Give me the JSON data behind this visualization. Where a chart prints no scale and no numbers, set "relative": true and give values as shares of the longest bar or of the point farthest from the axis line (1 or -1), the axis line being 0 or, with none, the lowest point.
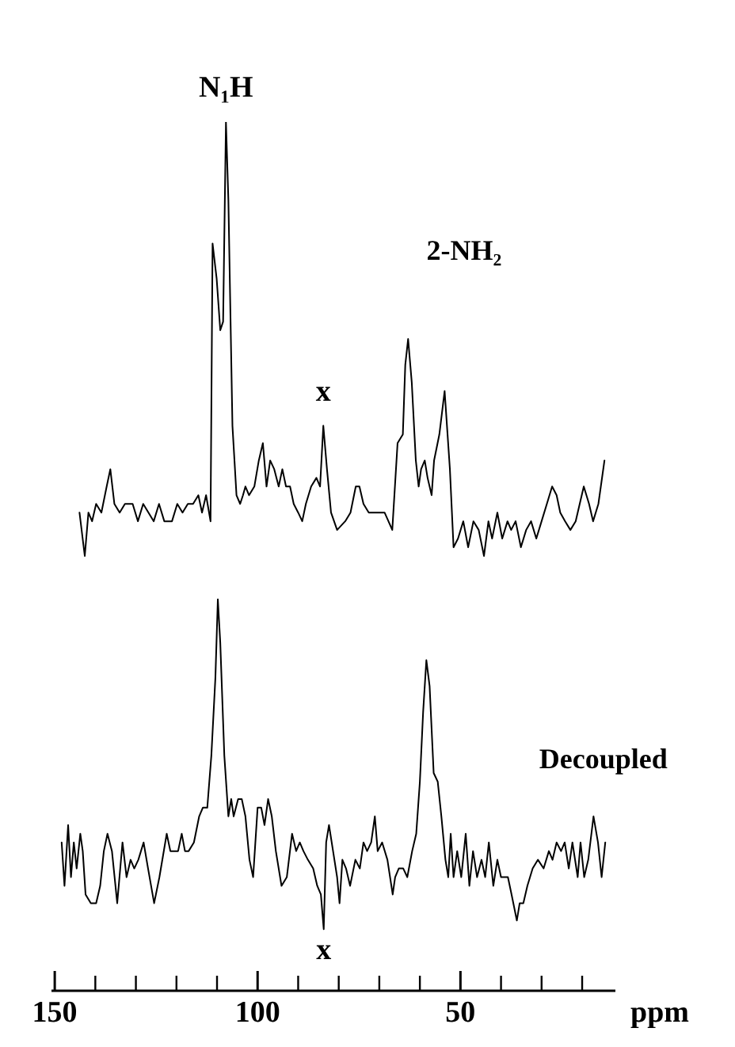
{
  "chart_data": {
    "type": "line",
    "relative": true,
    "xlim": [
      151,
      12
    ],
    "xlabel": "ppm",
    "xticks": [
      150,
      {
        "value": 140,
        "label": null
      },
      {
        "value": 130,
        "label": null
      },
      {
        "value": 120,
        "label": null
      },
      {
        "value": 110,
        "label": null
      },
      100,
      {
        "value": 90,
        "label": null
      },
      {
        "value": 80,
        "label": null
      },
      {
        "value": 70,
        "label": null
      },
      {
        "value": 60,
        "label": null
      },
      50,
      {
        "value": 40,
        "label": null
      },
      {
        "value": 30,
        "label": null
      },
      {
        "value": 20,
        "label": null
      }
    ],
    "annotations": [
      {
        "text": "N₁H",
        "x": 107.8,
        "y": 1.0
      },
      {
        "text": "x",
        "x": 83.8,
        "y": 0.65
      },
      {
        "text": "x",
        "x": 83.7,
        "y": 0.07
      }
    ],
    "series": [
      {
        "name": "2-NH₂",
        "color": "#000000",
        "x": [
          143.9,
          142.6,
          141.7,
          140.8,
          139.8,
          138.5,
          137.2,
          136.3,
          135.3,
          134.0,
          132.7,
          130.8,
          129.5,
          128.2,
          126.9,
          125.6,
          124.3,
          123.0,
          121.1,
          119.8,
          118.5,
          117.2,
          115.9,
          114.6,
          113.7,
          112.7,
          111.6,
          111.1,
          110.1,
          109.2,
          108.5,
          107.8,
          107.2,
          106.2,
          105.2,
          104.3,
          103.6,
          103.0,
          102.1,
          100.8,
          99.7,
          98.7,
          97.8,
          96.9,
          95.9,
          94.8,
          93.9,
          93.0,
          92.0,
          91.1,
          90.0,
          89.0,
          88.1,
          86.8,
          85.5,
          84.6,
          83.8,
          82.9,
          81.9,
          80.4,
          78.4,
          77.1,
          75.8,
          74.9,
          73.9,
          72.6,
          70.7,
          68.7,
          66.8,
          65.5,
          64.2,
          63.6,
          62.9,
          62.0,
          61.0,
          60.3,
          59.7,
          58.8,
          58.1,
          57.1,
          56.5,
          55.2,
          53.9,
          52.6,
          51.7,
          50.6,
          49.3,
          48.1,
          46.8,
          45.5,
          44.2,
          43.1,
          42.2,
          40.9,
          39.7,
          38.4,
          37.5,
          36.4,
          35.1,
          33.8,
          32.6,
          31.3,
          30.0,
          28.7,
          27.4,
          26.3,
          25.4,
          24.2,
          22.9,
          21.6,
          19.6,
          18.3,
          17.3,
          16.0,
          14.5
        ],
        "values": [
          0.55,
          0.5,
          0.55,
          0.54,
          0.56,
          0.55,
          0.58,
          0.6,
          0.56,
          0.55,
          0.56,
          0.56,
          0.54,
          0.56,
          0.55,
          0.54,
          0.56,
          0.54,
          0.54,
          0.56,
          0.55,
          0.56,
          0.56,
          0.57,
          0.55,
          0.57,
          0.54,
          0.86,
          0.82,
          0.76,
          0.77,
          1.0,
          0.91,
          0.65,
          0.57,
          0.56,
          0.57,
          0.58,
          0.57,
          0.58,
          0.61,
          0.63,
          0.58,
          0.61,
          0.6,
          0.58,
          0.6,
          0.58,
          0.58,
          0.56,
          0.55,
          0.54,
          0.56,
          0.58,
          0.59,
          0.58,
          0.65,
          0.6,
          0.55,
          0.53,
          0.54,
          0.55,
          0.58,
          0.58,
          0.56,
          0.55,
          0.55,
          0.55,
          0.53,
          0.63,
          0.64,
          0.72,
          0.75,
          0.7,
          0.61,
          0.58,
          0.6,
          0.61,
          0.59,
          0.57,
          0.61,
          0.64,
          0.69,
          0.6,
          0.51,
          0.52,
          0.54,
          0.51,
          0.54,
          0.53,
          0.5,
          0.54,
          0.52,
          0.55,
          0.52,
          0.54,
          0.53,
          0.54,
          0.51,
          0.53,
          0.54,
          0.52,
          0.54,
          0.56,
          0.58,
          0.57,
          0.55,
          0.54,
          0.53,
          0.54,
          0.58,
          0.56,
          0.54,
          0.56,
          0.61
        ]
      },
      {
        "name": "Decoupled",
        "color": "#000000",
        "x": [
          148.3,
          147.6,
          146.7,
          146.0,
          145.3,
          144.6,
          143.7,
          143.1,
          142.4,
          141.1,
          139.8,
          138.8,
          137.9,
          137.0,
          135.9,
          134.6,
          133.3,
          132.3,
          131.3,
          130.4,
          129.4,
          128.1,
          127.0,
          125.5,
          124.2,
          122.4,
          121.5,
          120.5,
          119.6,
          118.7,
          117.9,
          117.0,
          115.7,
          114.4,
          113.5,
          112.4,
          111.4,
          110.4,
          109.8,
          109.2,
          108.2,
          107.2,
          106.5,
          105.9,
          104.8,
          103.9,
          103.0,
          102.0,
          101.1,
          100.0,
          99.1,
          98.3,
          97.4,
          96.5,
          95.5,
          94.1,
          92.8,
          91.5,
          90.5,
          89.6,
          88.7,
          87.6,
          86.3,
          85.3,
          84.4,
          83.7,
          83.1,
          82.4,
          81.4,
          80.4,
          79.8,
          79.1,
          78.2,
          77.2,
          75.9,
          74.8,
          73.9,
          73.0,
          72.0,
          71.1,
          70.4,
          69.3,
          68.0,
          66.7,
          66.1,
          65.2,
          64.1,
          63.1,
          61.9,
          60.9,
          60.0,
          59.2,
          58.4,
          57.6,
          56.6,
          55.6,
          54.7,
          53.7,
          53.0,
          52.4,
          51.7,
          50.8,
          49.8,
          48.7,
          47.8,
          46.9,
          45.9,
          44.8,
          43.9,
          43.0,
          41.9,
          40.9,
          40.0,
          39.3,
          38.3,
          37.4,
          36.1,
          35.4,
          34.5,
          33.5,
          32.2,
          30.9,
          29.5,
          28.2,
          27.3,
          26.3,
          25.2,
          24.3,
          23.3,
          22.4,
          21.1,
          20.4,
          19.5,
          18.5,
          17.2,
          16.1,
          15.2,
          14.3
        ],
        "values": [
          0.17,
          0.12,
          0.19,
          0.13,
          0.17,
          0.14,
          0.18,
          0.16,
          0.11,
          0.1,
          0.1,
          0.12,
          0.16,
          0.18,
          0.16,
          0.1,
          0.17,
          0.13,
          0.15,
          0.14,
          0.15,
          0.17,
          0.14,
          0.1,
          0.13,
          0.18,
          0.16,
          0.16,
          0.16,
          0.18,
          0.16,
          0.16,
          0.17,
          0.2,
          0.21,
          0.21,
          0.27,
          0.36,
          0.45,
          0.4,
          0.27,
          0.2,
          0.22,
          0.2,
          0.22,
          0.22,
          0.2,
          0.15,
          0.13,
          0.21,
          0.21,
          0.19,
          0.22,
          0.2,
          0.16,
          0.12,
          0.13,
          0.18,
          0.16,
          0.17,
          0.16,
          0.15,
          0.14,
          0.12,
          0.11,
          0.07,
          0.17,
          0.19,
          0.16,
          0.13,
          0.1,
          0.15,
          0.14,
          0.12,
          0.15,
          0.14,
          0.17,
          0.16,
          0.17,
          0.2,
          0.16,
          0.17,
          0.15,
          0.11,
          0.13,
          0.14,
          0.14,
          0.13,
          0.16,
          0.18,
          0.24,
          0.32,
          0.38,
          0.35,
          0.25,
          0.24,
          0.2,
          0.15,
          0.13,
          0.18,
          0.13,
          0.16,
          0.13,
          0.18,
          0.12,
          0.16,
          0.13,
          0.15,
          0.13,
          0.17,
          0.12,
          0.15,
          0.13,
          0.13,
          0.13,
          0.11,
          0.08,
          0.1,
          0.1,
          0.12,
          0.14,
          0.15,
          0.14,
          0.16,
          0.15,
          0.17,
          0.16,
          0.17,
          0.14,
          0.17,
          0.13,
          0.17,
          0.13,
          0.15,
          0.2,
          0.17,
          0.13,
          0.17
        ]
      }
    ]
  }
}
